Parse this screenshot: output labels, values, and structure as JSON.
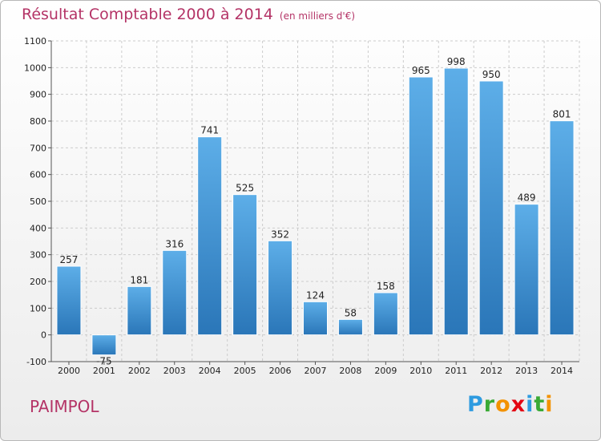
{
  "header": {
    "title": "Résultat Comptable 2000 à 2014",
    "subtitle": "(en milliers d'€)"
  },
  "footer": {
    "place": "PAIMPOL",
    "logo_letters": [
      {
        "ch": "P",
        "color": "#2e9be0"
      },
      {
        "ch": "r",
        "color": "#3aaa35"
      },
      {
        "ch": "o",
        "color": "#f39200"
      },
      {
        "ch": "x",
        "color": "#e30613"
      },
      {
        "ch": "i",
        "color": "#2e9be0"
      },
      {
        "ch": "t",
        "color": "#3aaa35"
      },
      {
        "ch": "i",
        "color": "#f39200"
      }
    ]
  },
  "colors": {
    "bar_top": "#5daee8",
    "bar_bottom": "#2a76b8",
    "grid": "#cccccc",
    "title": "#b43366"
  },
  "chart_data": {
    "type": "bar",
    "title": "Résultat Comptable 2000 à 2014",
    "subtitle": "(en milliers d'€)",
    "categories": [
      "2000",
      "2001",
      "2002",
      "2003",
      "2004",
      "2005",
      "2006",
      "2007",
      "2008",
      "2009",
      "2010",
      "2011",
      "2012",
      "2013",
      "2014"
    ],
    "values": [
      257,
      -75,
      181,
      316,
      741,
      525,
      352,
      124,
      58,
      158,
      965,
      998,
      950,
      489,
      801
    ],
    "value_labels": [
      "257",
      "-75",
      "181",
      "316",
      "741",
      "525",
      "352",
      "124",
      "58",
      "158",
      "965",
      "998",
      "950",
      "489",
      "801"
    ],
    "ylim": [
      -100,
      1100
    ],
    "yticks": [
      -100,
      0,
      100,
      200,
      300,
      400,
      500,
      600,
      700,
      800,
      900,
      1000,
      1100
    ],
    "ytick_labels": [
      "-100",
      "0",
      "100",
      "200",
      "300",
      "400",
      "500",
      "600",
      "700",
      "800",
      "900",
      "1000",
      "1100"
    ],
    "grid": true,
    "legend": "none"
  }
}
